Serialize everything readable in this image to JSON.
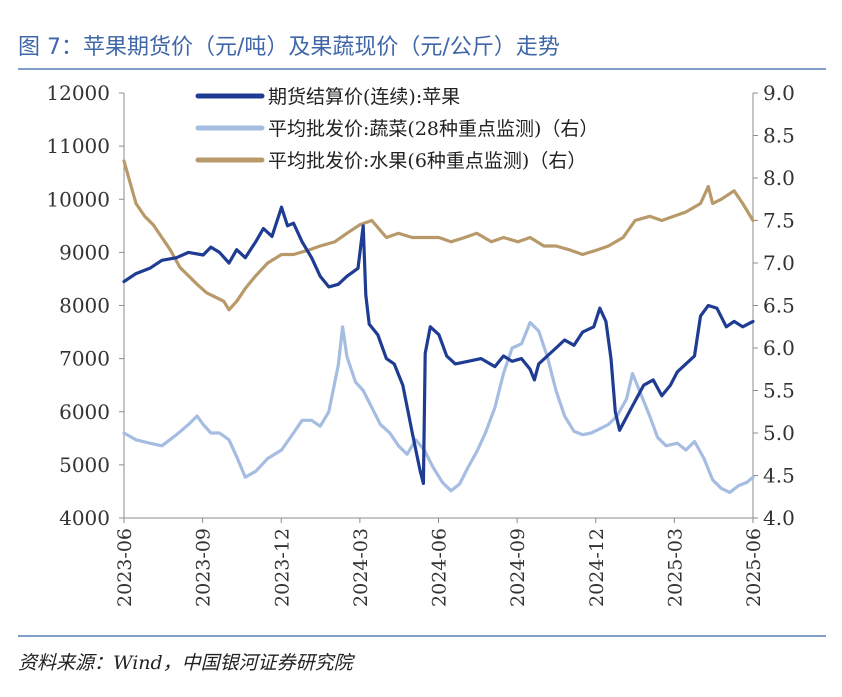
{
  "title": "图 7：苹果期货价（元/吨）及果蔬现价（元/公斤）走势",
  "source": "资料来源：Wind，中国银河证券研究院",
  "chart_data": {
    "type": "line",
    "x_tick_labels": [
      "2023-06",
      "2023-09",
      "2023-12",
      "2024-03",
      "2024-06",
      "2024-09",
      "2024-12",
      "2025-03",
      "2025-06"
    ],
    "y_left": {
      "ticks": [
        "12000",
        "11000",
        "10000",
        "9000",
        "8000",
        "7000",
        "6000",
        "5000",
        "4000"
      ],
      "range": [
        4000,
        12000
      ]
    },
    "y_right": {
      "ticks": [
        "9.0",
        "8.5",
        "8.0",
        "7.5",
        "7.0",
        "6.5",
        "6.0",
        "5.5",
        "5.0",
        "4.5",
        "4.0"
      ],
      "range": [
        4.0,
        9.0
      ]
    },
    "legend_position": "top",
    "colors": {
      "apple": "#1f3c93",
      "veg": "#a6bde2",
      "fruit": "#b89a6a"
    },
    "series": [
      {
        "key": "apple",
        "name": "期货结算价(连续):苹果",
        "axis": "left",
        "points": [
          [
            "2023-06-01",
            8450
          ],
          [
            "2023-06-15",
            8600
          ],
          [
            "2023-07-01",
            8700
          ],
          [
            "2023-07-15",
            8850
          ],
          [
            "2023-08-01",
            8900
          ],
          [
            "2023-08-15",
            9000
          ],
          [
            "2023-09-01",
            8950
          ],
          [
            "2023-09-10",
            9100
          ],
          [
            "2023-09-20",
            9000
          ],
          [
            "2023-10-01",
            8800
          ],
          [
            "2023-10-10",
            9050
          ],
          [
            "2023-10-20",
            8900
          ],
          [
            "2023-11-01",
            9200
          ],
          [
            "2023-11-10",
            9450
          ],
          [
            "2023-11-20",
            9300
          ],
          [
            "2023-12-01",
            9850
          ],
          [
            "2023-12-08",
            9500
          ],
          [
            "2023-12-15",
            9550
          ],
          [
            "2023-12-25",
            9200
          ],
          [
            "2024-01-05",
            8900
          ],
          [
            "2024-01-15",
            8550
          ],
          [
            "2024-01-25",
            8350
          ],
          [
            "2024-02-05",
            8400
          ],
          [
            "2024-02-15",
            8550
          ],
          [
            "2024-02-28",
            8700
          ],
          [
            "2024-03-05",
            9500
          ],
          [
            "2024-03-08",
            8200
          ],
          [
            "2024-03-12",
            7650
          ],
          [
            "2024-03-22",
            7450
          ],
          [
            "2024-04-01",
            7000
          ],
          [
            "2024-04-10",
            6900
          ],
          [
            "2024-04-20",
            6500
          ],
          [
            "2024-05-01",
            5600
          ],
          [
            "2024-05-10",
            4900
          ],
          [
            "2024-05-14",
            4650
          ],
          [
            "2024-05-16",
            7100
          ],
          [
            "2024-05-22",
            7600
          ],
          [
            "2024-06-01",
            7450
          ],
          [
            "2024-06-10",
            7050
          ],
          [
            "2024-06-20",
            6900
          ],
          [
            "2024-07-05",
            6950
          ],
          [
            "2024-07-20",
            7000
          ],
          [
            "2024-08-05",
            6850
          ],
          [
            "2024-08-15",
            7050
          ],
          [
            "2024-08-25",
            6950
          ],
          [
            "2024-09-05",
            7000
          ],
          [
            "2024-09-15",
            6800
          ],
          [
            "2024-09-20",
            6600
          ],
          [
            "2024-09-25",
            6900
          ],
          [
            "2024-10-05",
            7050
          ],
          [
            "2024-10-15",
            7200
          ],
          [
            "2024-10-25",
            7350
          ],
          [
            "2024-11-05",
            7250
          ],
          [
            "2024-11-15",
            7500
          ],
          [
            "2024-11-28",
            7600
          ],
          [
            "2024-12-05",
            7950
          ],
          [
            "2024-12-12",
            7700
          ],
          [
            "2024-12-18",
            7000
          ],
          [
            "2024-12-23",
            6000
          ],
          [
            "2024-12-28",
            5650
          ],
          [
            "2025-01-05",
            5900
          ],
          [
            "2025-01-15",
            6200
          ],
          [
            "2025-01-25",
            6500
          ],
          [
            "2025-02-05",
            6600
          ],
          [
            "2025-02-15",
            6300
          ],
          [
            "2025-02-25",
            6500
          ],
          [
            "2025-03-05",
            6750
          ],
          [
            "2025-03-15",
            6900
          ],
          [
            "2025-03-25",
            7050
          ],
          [
            "2025-04-01",
            7800
          ],
          [
            "2025-04-10",
            8000
          ],
          [
            "2025-04-20",
            7950
          ],
          [
            "2025-05-01",
            7600
          ],
          [
            "2025-05-10",
            7700
          ],
          [
            "2025-05-20",
            7600
          ],
          [
            "2025-06-01",
            7700
          ]
        ]
      },
      {
        "key": "veg",
        "name": "平均批发价:蔬菜(28种重点监测)（右）",
        "axis": "right",
        "points": [
          [
            "2023-06-01",
            5.0
          ],
          [
            "2023-06-15",
            4.92
          ],
          [
            "2023-07-01",
            4.88
          ],
          [
            "2023-07-15",
            4.85
          ],
          [
            "2023-08-01",
            4.98
          ],
          [
            "2023-08-15",
            5.1
          ],
          [
            "2023-08-25",
            5.2
          ],
          [
            "2023-09-01",
            5.1
          ],
          [
            "2023-09-10",
            5.0
          ],
          [
            "2023-09-20",
            5.0
          ],
          [
            "2023-10-01",
            4.92
          ],
          [
            "2023-10-10",
            4.72
          ],
          [
            "2023-10-20",
            4.48
          ],
          [
            "2023-11-01",
            4.55
          ],
          [
            "2023-11-15",
            4.7
          ],
          [
            "2023-12-01",
            4.8
          ],
          [
            "2023-12-15",
            5.0
          ],
          [
            "2023-12-25",
            5.15
          ],
          [
            "2024-01-05",
            5.15
          ],
          [
            "2024-01-15",
            5.08
          ],
          [
            "2024-01-25",
            5.25
          ],
          [
            "2024-02-05",
            5.8
          ],
          [
            "2024-02-10",
            6.25
          ],
          [
            "2024-02-15",
            5.9
          ],
          [
            "2024-02-25",
            5.6
          ],
          [
            "2024-03-05",
            5.5
          ],
          [
            "2024-03-15",
            5.3
          ],
          [
            "2024-03-25",
            5.1
          ],
          [
            "2024-04-05",
            5.0
          ],
          [
            "2024-04-15",
            4.85
          ],
          [
            "2024-04-25",
            4.75
          ],
          [
            "2024-05-05",
            4.92
          ],
          [
            "2024-05-15",
            4.8
          ],
          [
            "2024-05-25",
            4.6
          ],
          [
            "2024-06-05",
            4.42
          ],
          [
            "2024-06-15",
            4.32
          ],
          [
            "2024-06-25",
            4.4
          ],
          [
            "2024-07-05",
            4.6
          ],
          [
            "2024-07-15",
            4.78
          ],
          [
            "2024-07-25",
            5.0
          ],
          [
            "2024-08-05",
            5.3
          ],
          [
            "2024-08-15",
            5.7
          ],
          [
            "2024-08-25",
            6.0
          ],
          [
            "2024-09-05",
            6.05
          ],
          [
            "2024-09-15",
            6.3
          ],
          [
            "2024-09-25",
            6.2
          ],
          [
            "2024-10-05",
            5.9
          ],
          [
            "2024-10-15",
            5.5
          ],
          [
            "2024-10-25",
            5.2
          ],
          [
            "2024-11-05",
            5.02
          ],
          [
            "2024-11-15",
            4.98
          ],
          [
            "2024-11-25",
            5.0
          ],
          [
            "2024-12-05",
            5.05
          ],
          [
            "2024-12-15",
            5.1
          ],
          [
            "2024-12-25",
            5.2
          ],
          [
            "2025-01-05",
            5.4
          ],
          [
            "2025-01-12",
            5.7
          ],
          [
            "2025-01-20",
            5.5
          ],
          [
            "2025-02-01",
            5.2
          ],
          [
            "2025-02-10",
            4.95
          ],
          [
            "2025-02-20",
            4.85
          ],
          [
            "2025-03-05",
            4.88
          ],
          [
            "2025-03-15",
            4.8
          ],
          [
            "2025-03-25",
            4.9
          ],
          [
            "2025-04-05",
            4.7
          ],
          [
            "2025-04-15",
            4.45
          ],
          [
            "2025-04-25",
            4.35
          ],
          [
            "2025-05-05",
            4.3
          ],
          [
            "2025-05-15",
            4.38
          ],
          [
            "2025-05-25",
            4.42
          ],
          [
            "2025-06-01",
            4.48
          ]
        ]
      },
      {
        "key": "fruit",
        "name": "平均批发价:水果(6种重点监测)（右）",
        "axis": "right",
        "points": [
          [
            "2023-06-01",
            8.2
          ],
          [
            "2023-06-08",
            7.95
          ],
          [
            "2023-06-15",
            7.7
          ],
          [
            "2023-06-25",
            7.55
          ],
          [
            "2023-07-05",
            7.45
          ],
          [
            "2023-07-15",
            7.3
          ],
          [
            "2023-07-25",
            7.15
          ],
          [
            "2023-08-05",
            6.95
          ],
          [
            "2023-08-15",
            6.85
          ],
          [
            "2023-08-25",
            6.75
          ],
          [
            "2023-09-05",
            6.65
          ],
          [
            "2023-09-15",
            6.6
          ],
          [
            "2023-09-25",
            6.55
          ],
          [
            "2023-10-01",
            6.45
          ],
          [
            "2023-10-10",
            6.55
          ],
          [
            "2023-10-20",
            6.7
          ],
          [
            "2023-11-01",
            6.85
          ],
          [
            "2023-11-15",
            7.0
          ],
          [
            "2023-12-01",
            7.1
          ],
          [
            "2023-12-15",
            7.1
          ],
          [
            "2024-01-01",
            7.15
          ],
          [
            "2024-01-15",
            7.2
          ],
          [
            "2024-02-01",
            7.25
          ],
          [
            "2024-02-15",
            7.35
          ],
          [
            "2024-03-01",
            7.45
          ],
          [
            "2024-03-15",
            7.5
          ],
          [
            "2024-04-01",
            7.3
          ],
          [
            "2024-04-15",
            7.35
          ],
          [
            "2024-05-01",
            7.3
          ],
          [
            "2024-05-15",
            7.3
          ],
          [
            "2024-06-01",
            7.3
          ],
          [
            "2024-06-15",
            7.25
          ],
          [
            "2024-07-01",
            7.3
          ],
          [
            "2024-07-15",
            7.35
          ],
          [
            "2024-08-01",
            7.25
          ],
          [
            "2024-08-15",
            7.3
          ],
          [
            "2024-09-01",
            7.25
          ],
          [
            "2024-09-15",
            7.3
          ],
          [
            "2024-10-01",
            7.2
          ],
          [
            "2024-10-15",
            7.2
          ],
          [
            "2024-11-01",
            7.15
          ],
          [
            "2024-11-15",
            7.1
          ],
          [
            "2024-12-01",
            7.15
          ],
          [
            "2024-12-15",
            7.2
          ],
          [
            "2025-01-01",
            7.3
          ],
          [
            "2025-01-15",
            7.5
          ],
          [
            "2025-02-01",
            7.55
          ],
          [
            "2025-02-15",
            7.5
          ],
          [
            "2025-03-01",
            7.55
          ],
          [
            "2025-03-15",
            7.6
          ],
          [
            "2025-04-01",
            7.7
          ],
          [
            "2025-04-10",
            7.9
          ],
          [
            "2025-04-15",
            7.7
          ],
          [
            "2025-04-25",
            7.75
          ],
          [
            "2025-05-10",
            7.85
          ],
          [
            "2025-05-20",
            7.7
          ],
          [
            "2025-06-01",
            7.5
          ]
        ]
      }
    ]
  }
}
